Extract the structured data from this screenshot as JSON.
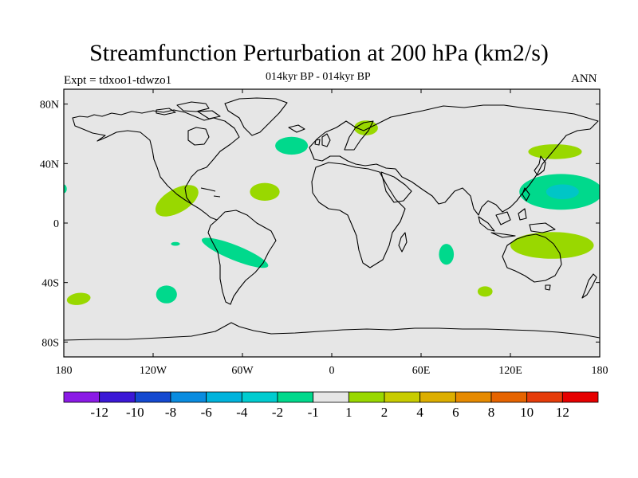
{
  "header": {
    "title": "Streamfunction Perturbation at 200 hPa (km2/s)",
    "expt": "Expt = tdxoo1-tdwzo1",
    "subtitle": "014kyr BP - 014kyr BP",
    "season": "ANN"
  },
  "map": {
    "background": "#e6e6e6",
    "coast_color": "#000000",
    "lon_range": [
      -180,
      180
    ],
    "lat_range": [
      -90,
      90
    ],
    "lat_ticks": [
      {
        "lat": 80,
        "label": "80N"
      },
      {
        "lat": 40,
        "label": "40N"
      },
      {
        "lat": 0,
        "label": "0"
      },
      {
        "lat": -40,
        "label": "40S"
      },
      {
        "lat": -80,
        "label": "80S"
      }
    ],
    "lon_ticks": [
      {
        "lon": -180,
        "label": "180"
      },
      {
        "lon": -120,
        "label": "120W"
      },
      {
        "lon": -60,
        "label": "60W"
      },
      {
        "lon": 0,
        "label": "0"
      },
      {
        "lon": 60,
        "label": "60E"
      },
      {
        "lon": 120,
        "label": "120E"
      },
      {
        "lon": 180,
        "label": "180"
      }
    ],
    "anomalies": [
      {
        "name": "north-atlantic-negative",
        "lon": -27,
        "lat": 52,
        "rx": 11,
        "ry": 6,
        "rot": 0,
        "color": "#00d98c"
      },
      {
        "name": "barents-positive",
        "lon": 23,
        "lat": 64,
        "rx": 8,
        "ry": 5,
        "rot": 0,
        "color": "#99d800"
      },
      {
        "name": "japan-positive",
        "lon": 150,
        "lat": 48,
        "rx": 18,
        "ry": 5,
        "rot": 0,
        "color": "#99d800"
      },
      {
        "name": "northwest-pacific-negative-outer",
        "lon": 154,
        "lat": 21,
        "rx": 28,
        "ry": 12,
        "rot": 0,
        "color": "#00d98c"
      },
      {
        "name": "northwest-pacific-negative-inner",
        "lon": 155,
        "lat": 21,
        "rx": 11,
        "ry": 5,
        "rot": 0,
        "color": "#00c6c6"
      },
      {
        "name": "central-america-positive",
        "lon": -104,
        "lat": 15,
        "rx": 16,
        "ry": 8,
        "rot": -30,
        "color": "#99d800"
      },
      {
        "name": "atlantic-positive",
        "lon": -45,
        "lat": 21,
        "rx": 10,
        "ry": 6,
        "rot": 0,
        "color": "#99d800"
      },
      {
        "name": "dateline-negative",
        "lon": -180,
        "lat": 23,
        "rx": 2,
        "ry": 3,
        "rot": 0,
        "color": "#00d98c"
      },
      {
        "name": "south-pacific-small-negative",
        "lon": -105,
        "lat": -14,
        "rx": 3,
        "ry": 1.3,
        "rot": 0,
        "color": "#00d98c"
      },
      {
        "name": "south-america-negative",
        "lon": -65,
        "lat": -20,
        "rx": 24,
        "ry": 5,
        "rot": 22,
        "color": "#00d98c"
      },
      {
        "name": "south-pacific-positive",
        "lon": -170,
        "lat": -51,
        "rx": 8,
        "ry": 4,
        "rot": -8,
        "color": "#99d800"
      },
      {
        "name": "south-east-pacific-negative",
        "lon": -111,
        "lat": -48,
        "rx": 7,
        "ry": 6,
        "rot": 0,
        "color": "#00d98c"
      },
      {
        "name": "indian-ocean-negative",
        "lon": 77,
        "lat": -21,
        "rx": 5,
        "ry": 7,
        "rot": 0,
        "color": "#00d98c"
      },
      {
        "name": "southern-indian-positive",
        "lon": 103,
        "lat": -46,
        "rx": 5,
        "ry": 3.5,
        "rot": 0,
        "color": "#99d800"
      },
      {
        "name": "australia-positive",
        "lon": 148,
        "lat": -15,
        "rx": 28,
        "ry": 9,
        "rot": 0,
        "color": "#99d800"
      }
    ]
  },
  "colorbar": {
    "colors": [
      "#8b1ae6",
      "#3b18d6",
      "#1449d0",
      "#0a8ce0",
      "#00b3dc",
      "#00ccd0",
      "#00d98c",
      "#e6e6e6",
      "#99d800",
      "#c8cc00",
      "#dcae00",
      "#e68a00",
      "#e66400",
      "#e63c0a",
      "#e60000"
    ],
    "labels": [
      "-12",
      "-10",
      "-8",
      "-6",
      "-4",
      "-2",
      "-1",
      "1",
      "2",
      "4",
      "6",
      "8",
      "10",
      "12"
    ]
  }
}
